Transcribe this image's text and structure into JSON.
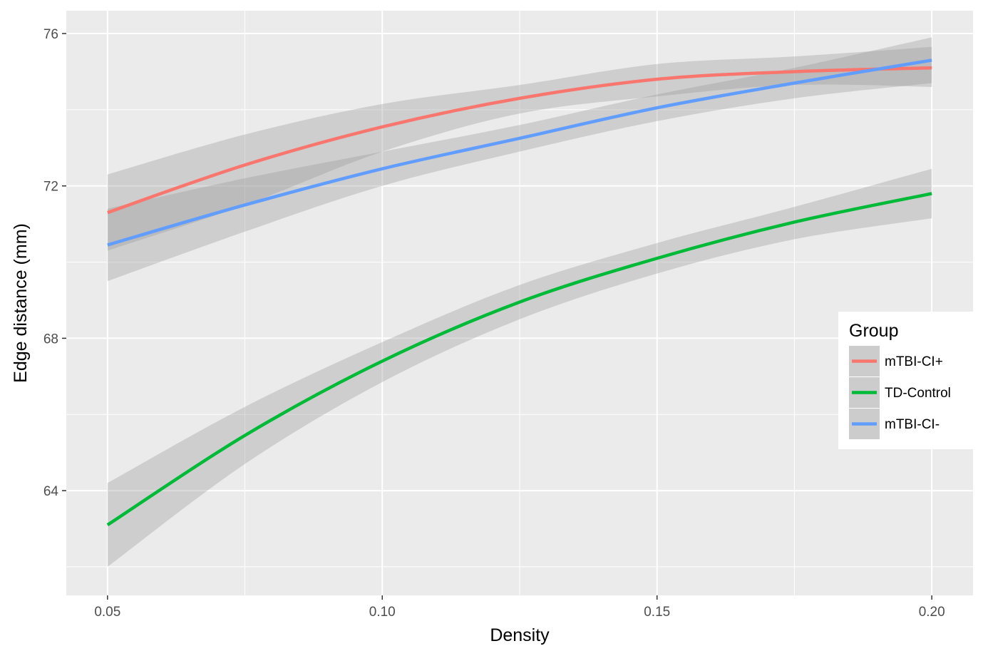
{
  "chart_data": {
    "type": "line",
    "xlabel": "Density",
    "ylabel": "Edge distance (mm)",
    "xlim": [
      0.0425,
      0.2075
    ],
    "ylim": [
      61.25,
      76.6
    ],
    "x_ticks": [
      0.05,
      0.1,
      0.15,
      0.2
    ],
    "x_tick_labels": [
      "0.05",
      "0.10",
      "0.15",
      "0.20"
    ],
    "y_ticks": [
      64,
      68,
      72,
      76
    ],
    "y_tick_labels": [
      "64",
      "68",
      "72",
      "76"
    ],
    "grid": true,
    "legend": {
      "title": "Group",
      "position": "right"
    },
    "x": [
      0.05,
      0.075,
      0.1,
      0.125,
      0.15,
      0.175,
      0.2
    ],
    "series": [
      {
        "name": "mTBI-CI+",
        "color": "#F8766D",
        "values": [
          71.3,
          72.55,
          73.55,
          74.3,
          74.8,
          75.0,
          75.1
        ],
        "lower": [
          70.3,
          71.5,
          72.9,
          73.9,
          74.35,
          74.65,
          74.6
        ],
        "upper": [
          72.3,
          73.35,
          74.15,
          74.65,
          75.2,
          75.4,
          75.65
        ]
      },
      {
        "name": "TD-Control",
        "color": "#00BA38",
        "values": [
          63.1,
          65.45,
          67.4,
          68.95,
          70.1,
          71.05,
          71.8
        ],
        "lower": [
          62.0,
          64.7,
          66.85,
          68.5,
          69.7,
          70.6,
          71.15
        ],
        "upper": [
          64.2,
          66.2,
          67.9,
          69.4,
          70.5,
          71.45,
          72.45
        ]
      },
      {
        "name": "mTBI-CI-",
        "color": "#619CFF",
        "values": [
          70.45,
          71.5,
          72.45,
          73.25,
          74.05,
          74.7,
          75.3
        ],
        "lower": [
          69.5,
          70.8,
          72.0,
          72.9,
          73.7,
          74.3,
          74.7
        ],
        "upper": [
          71.4,
          72.2,
          72.9,
          73.6,
          74.4,
          75.1,
          75.9
        ]
      }
    ]
  }
}
